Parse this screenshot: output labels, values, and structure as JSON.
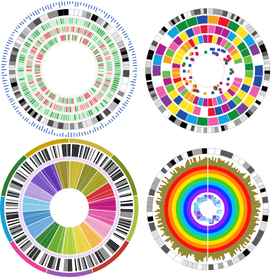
{
  "chart_data": [
    {
      "type": "circos",
      "id": "top-left",
      "seed": 11,
      "ideogram_segments": 16,
      "ideogram_palette": [
        "#ffffff",
        "#e6e6e6",
        "#bdbdbd",
        "#8c8c8c",
        "#4d4d4d",
        "#000000"
      ],
      "outer_ticks": {
        "count": 150,
        "color": "#2a59b8"
      },
      "bands": [
        {
          "kind": "bars",
          "count": 140,
          "palette": [
            "#37b04a",
            "#7fd08a",
            "#c8ecc8"
          ],
          "background": "#f7f7f7"
        },
        {
          "kind": "bars",
          "count": 140,
          "palette": [
            "#e6434f",
            "#f28a92",
            "#c8ecc8",
            "#7fd08a"
          ],
          "background": "#ffffff"
        },
        {
          "kind": "bars",
          "count": 140,
          "palette": [
            "#37b04a",
            "#7fd08a",
            "#e6434f",
            "#ffffff"
          ],
          "background": "#ffffff"
        }
      ]
    },
    {
      "type": "circos",
      "id": "top-right",
      "seed": 23,
      "ideogram_segments": 18,
      "ideogram_palette": [
        "#ffffff",
        "#d9d9d9",
        "#9e9e9e",
        "#555555",
        "#000000"
      ],
      "bands": [
        {
          "kind": "blocks",
          "count": 30,
          "palette": [
            "#fde31c",
            "#f6a21c",
            "#e8182d",
            "#6dbe45",
            "#0f8c3a",
            "#14a3df",
            "#2250a8",
            "#b31c8e",
            "#ee5fa9",
            "#7d3f98",
            "#ffffff"
          ]
        },
        {
          "kind": "blocks",
          "count": 36,
          "palette": [
            "#fde31c",
            "#f6a21c",
            "#e8182d",
            "#6dbe45",
            "#0f8c3a",
            "#14a3df",
            "#2250a8",
            "#b31c8e",
            "#ee5fa9",
            "#ffffff"
          ]
        },
        {
          "kind": "blocks",
          "count": 42,
          "palette": [
            "#fde31c",
            "#f6a21c",
            "#e8182d",
            "#6dbe45",
            "#14a3df",
            "#b31c8e",
            "#ee5fa9",
            "#ffffff"
          ]
        },
        {
          "kind": "points",
          "count": 60,
          "palette": [
            "#e8182d",
            "#f6a21c",
            "#0f8c3a",
            "#2250a8",
            "#b31c8e"
          ]
        }
      ]
    },
    {
      "type": "circos",
      "id": "bottom-left",
      "seed": 37,
      "outer_palette": [
        "#c9b33a",
        "#7d8a1c",
        "#a5c43d",
        "#c0392b",
        "#9b59b6",
        "#e84393",
        "#1aa0d8",
        "#2e7d32",
        "#c8a000"
      ],
      "outer_segments": 9,
      "barcode": {
        "count": 260,
        "palette": [
          "#000000",
          "#ffffff",
          "#7a7a7a"
        ]
      },
      "wedges": [
        "#c7b52b",
        "#8a8a2a",
        "#a3a31c",
        "#d4313a",
        "#c2187a",
        "#e05aa6",
        "#f0a3c7",
        "#f3b74b",
        "#e9d23a",
        "#b2d13f",
        "#6fae2d",
        "#2e7d32",
        "#6fa8dc",
        "#4a8fc9",
        "#7ec8e3",
        "#b39ddb",
        "#7e57c2",
        "#5e35b1",
        "#9c8c2e"
      ]
    },
    {
      "type": "circos",
      "id": "bottom-right",
      "seed": 53,
      "ideogram_segments": 14,
      "ideogram_palette": [
        "#ffffff",
        "#e0e0e0",
        "#a9a9a9",
        "#5a5a5a",
        "#000000"
      ],
      "histogram": {
        "count": 220,
        "color": "#8b7a1e"
      },
      "rings": [
        "#ff1010",
        "#ff8a00",
        "#ffe000",
        "#40d020",
        "#00c0ff",
        "#1030ff",
        "#9020ff"
      ],
      "scatter": {
        "count": 80,
        "palette": [
          "#9b3fd4",
          "#c07ef0",
          "#6fd3f0",
          "#b3ecff"
        ]
      }
    }
  ]
}
